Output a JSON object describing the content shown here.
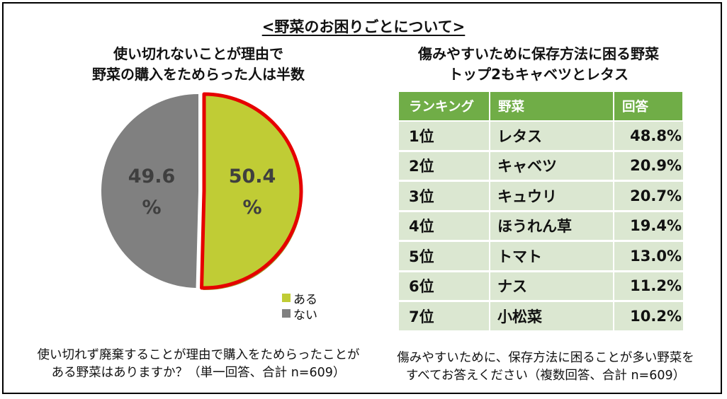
{
  "main_title": "<野菜のお困りごとについて>",
  "left": {
    "title_line1": "使い切れないことが理由で",
    "title_line2": "野菜の購入をためらった人は半数",
    "footnote_line1": "使い切れず廃棄することが理由で購入をためらったことが",
    "footnote_line2": "ある野菜はありますか？（単一回答、合計 n=609）"
  },
  "right": {
    "title_line1": "傷みやすいために保存方法に困る野菜",
    "title_line2": "トップ2もキャベツとレタス",
    "footnote_line1": "傷みやすいために、保存方法に困ることが多い野菜を",
    "footnote_line2": "すべてお答えください（複数回答、合計 n=609）"
  },
  "colors": {
    "aru": "#c0cc35",
    "nai": "#808080",
    "highlight": "#e60000",
    "header_green": "#70ad47",
    "row_green": "#dbe7d1"
  },
  "chart_data": [
    {
      "type": "pie",
      "title": "使い切れないことが理由で野菜の購入をためらった人は半数",
      "labels": [
        "ある",
        "ない"
      ],
      "values": [
        50.4,
        49.6
      ],
      "value_labels": [
        "50.4",
        "49.6"
      ],
      "unit": "%",
      "legend": [
        "ある",
        "ない"
      ],
      "legend_position": "bottom-right",
      "highlighted": "ある"
    },
    {
      "type": "table",
      "title": "傷みやすいために保存方法に困る野菜トップ2もキャベツとレタス",
      "columns": [
        "ランキング",
        "野菜",
        "回答"
      ],
      "rows": [
        [
          "1位",
          "レタス",
          "48.8%"
        ],
        [
          "2位",
          "キャベツ",
          "20.9%"
        ],
        [
          "3位",
          "キュウリ",
          "20.7%"
        ],
        [
          "4位",
          "ほうれん草",
          "19.4%"
        ],
        [
          "5位",
          "トマト",
          "13.0%"
        ],
        [
          "6位",
          "ナス",
          "11.2%"
        ],
        [
          "7位",
          "小松菜",
          "10.2%"
        ]
      ]
    }
  ]
}
